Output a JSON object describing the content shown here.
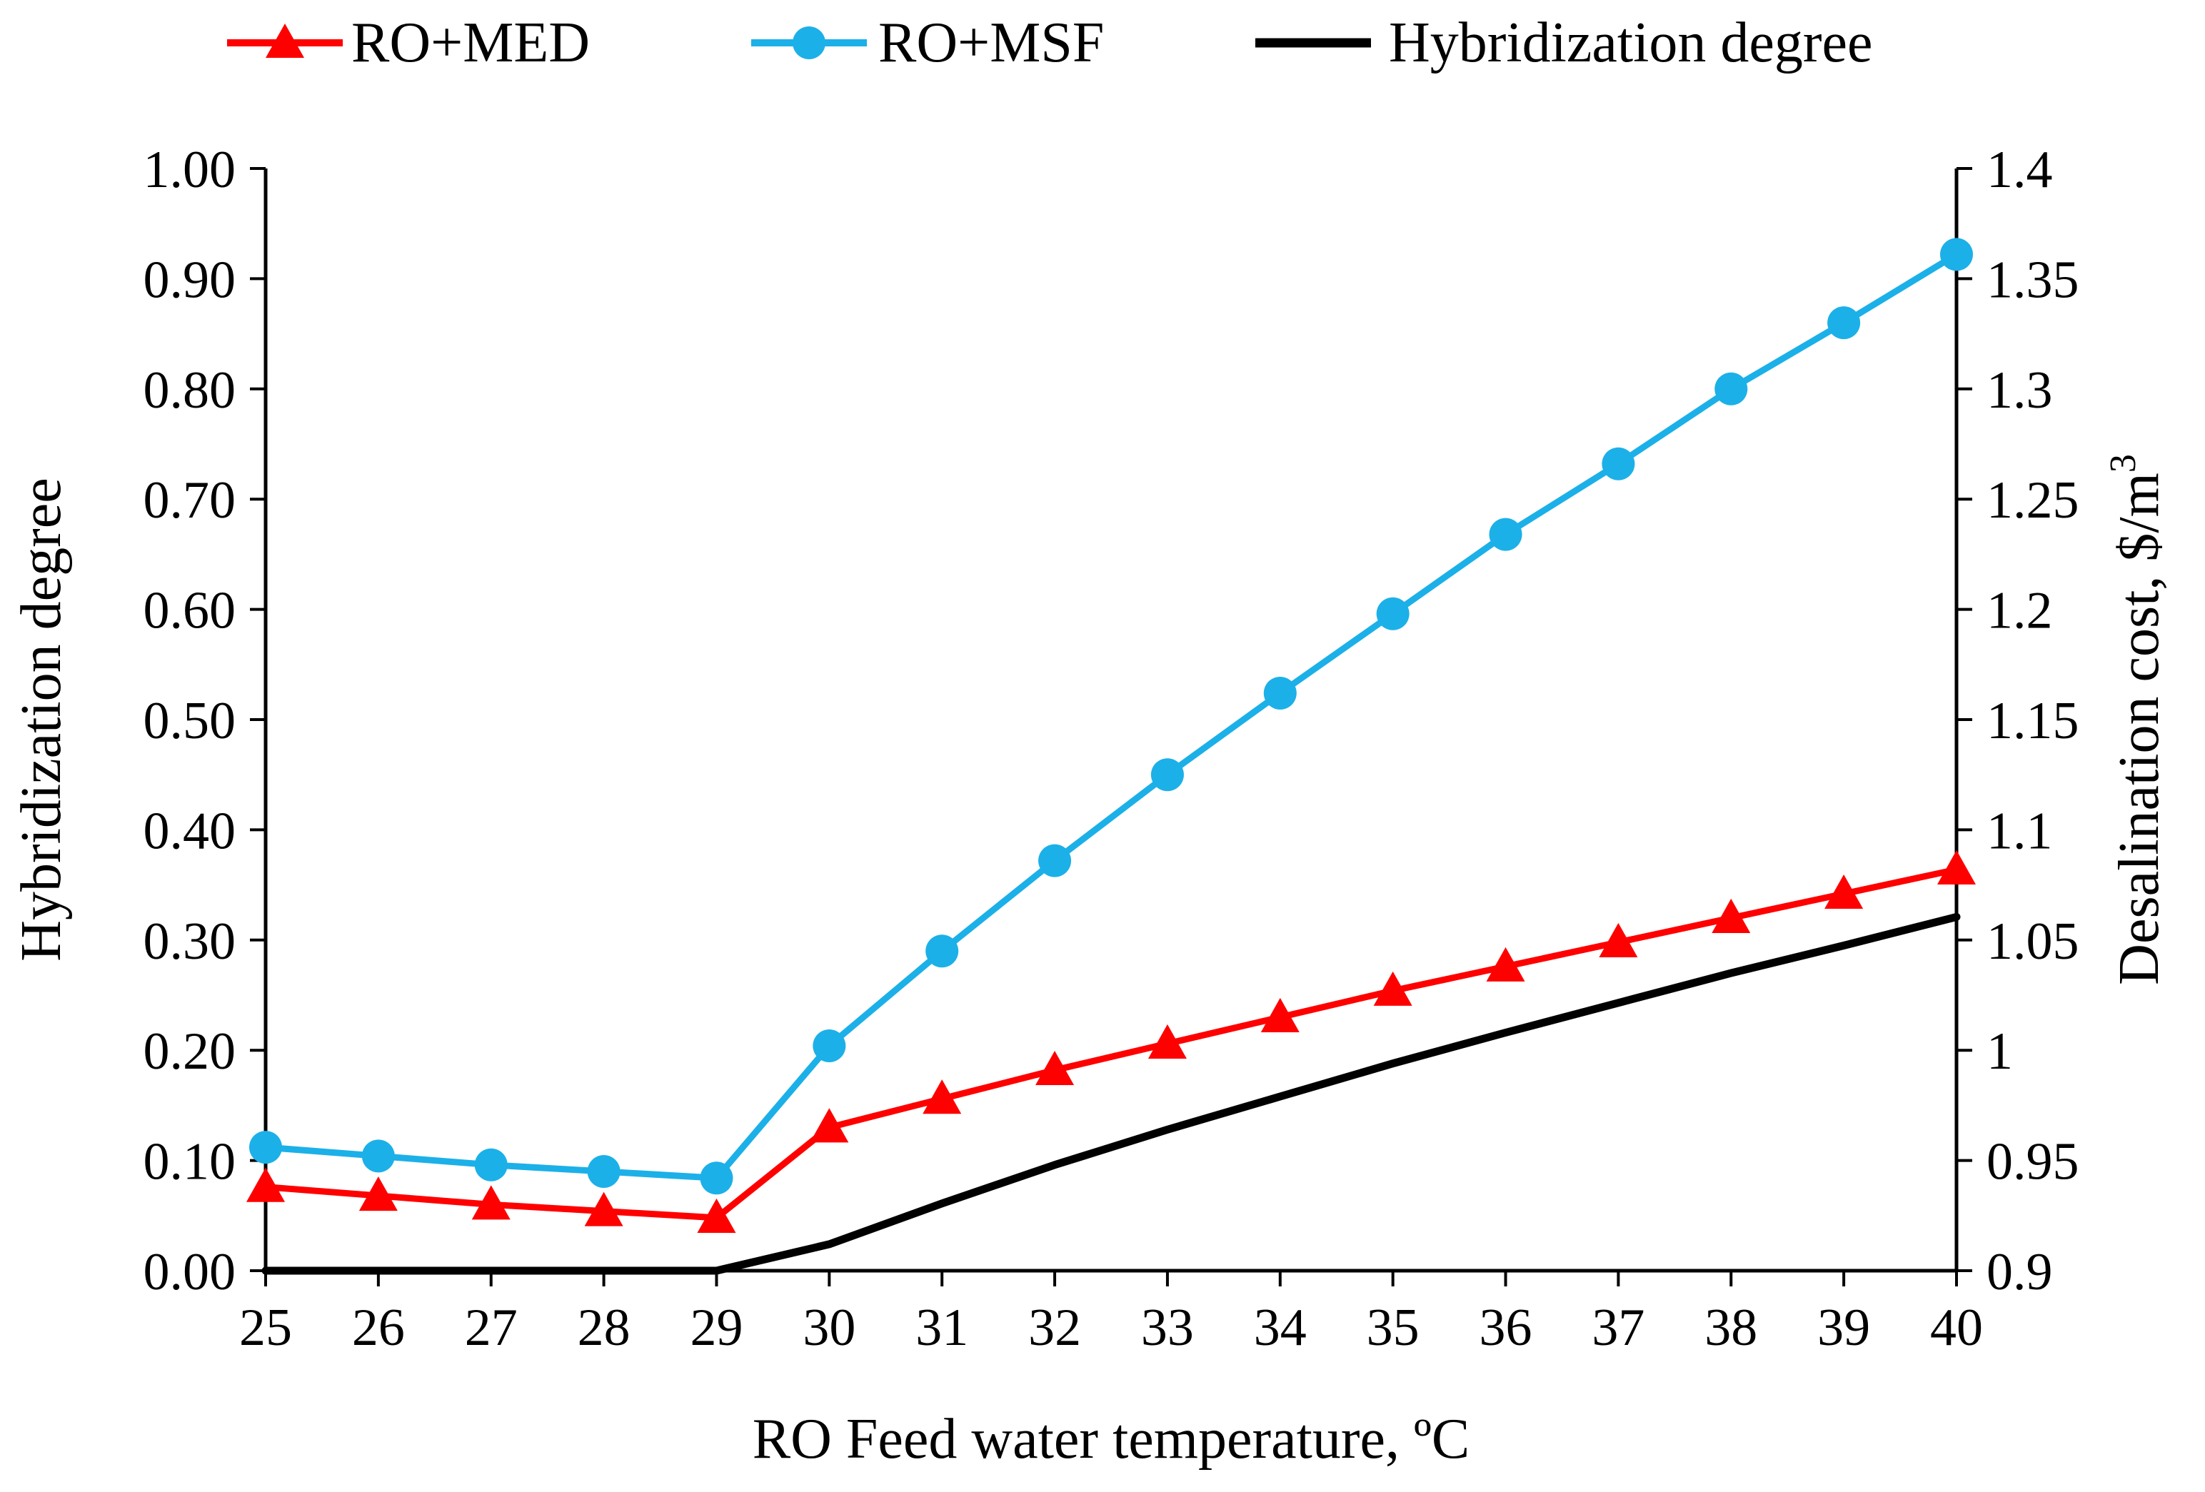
{
  "chart_data": {
    "type": "line",
    "title": "",
    "xlabel": "RO Feed water temperature, ºC",
    "ylabel_left": "Hybridization degree",
    "ylabel_right_main": "Desalination cost, $/m",
    "ylabel_right_sup": "3",
    "x": [
      25,
      26,
      27,
      28,
      29,
      30,
      31,
      32,
      33,
      34,
      35,
      36,
      37,
      38,
      39,
      40
    ],
    "x_tick_labels": [
      "25",
      "26",
      "27",
      "28",
      "29",
      "30",
      "31",
      "32",
      "33",
      "34",
      "35",
      "36",
      "37",
      "38",
      "39",
      "40"
    ],
    "ylim_left": [
      0,
      1.0
    ],
    "ylim_right": [
      0.9,
      1.4
    ],
    "y_left_tick_values": [
      0,
      0.1,
      0.2,
      0.3,
      0.4,
      0.5,
      0.6,
      0.7,
      0.8,
      0.9,
      1.0
    ],
    "y_left_tick_labels": [
      "0.00",
      "0.10",
      "0.20",
      "0.30",
      "0.40",
      "0.50",
      "0.60",
      "0.70",
      "0.80",
      "0.90",
      "1.00"
    ],
    "y_right_tick_values": [
      0.9,
      0.95,
      1.0,
      1.05,
      1.1,
      1.15,
      1.2,
      1.25,
      1.3,
      1.35,
      1.4
    ],
    "y_right_tick_labels": [
      "0.9",
      "0.95",
      "1",
      "1.05",
      "1.1",
      "1.15",
      "1.2",
      "1.25",
      "1.3",
      "1.35",
      "1.4"
    ],
    "grid": false,
    "legend_position": "top",
    "series": [
      {
        "name": "RO+MED",
        "axis": "right",
        "color": "#ff0000",
        "marker": "triangle",
        "values": [
          0.938,
          0.934,
          0.93,
          0.927,
          0.924,
          0.965,
          0.978,
          0.991,
          1.003,
          1.015,
          1.027,
          1.038,
          1.049,
          1.06,
          1.071,
          1.082
        ]
      },
      {
        "name": "RO+MSF",
        "axis": "right",
        "color": "#1cb0e8",
        "marker": "circle",
        "values": [
          0.956,
          0.952,
          0.948,
          0.945,
          0.942,
          1.002,
          1.045,
          1.086,
          1.125,
          1.162,
          1.198,
          1.234,
          1.266,
          1.3,
          1.33,
          1.361
        ]
      },
      {
        "name": "Hybridization degree",
        "axis": "left",
        "color": "#000000",
        "marker": "none",
        "values": [
          0.0,
          0.0,
          0.0,
          0.0,
          0.0,
          0.024,
          0.061,
          0.096,
          0.128,
          0.158,
          0.188,
          0.216,
          0.243,
          0.27,
          0.295,
          0.321
        ]
      }
    ]
  }
}
